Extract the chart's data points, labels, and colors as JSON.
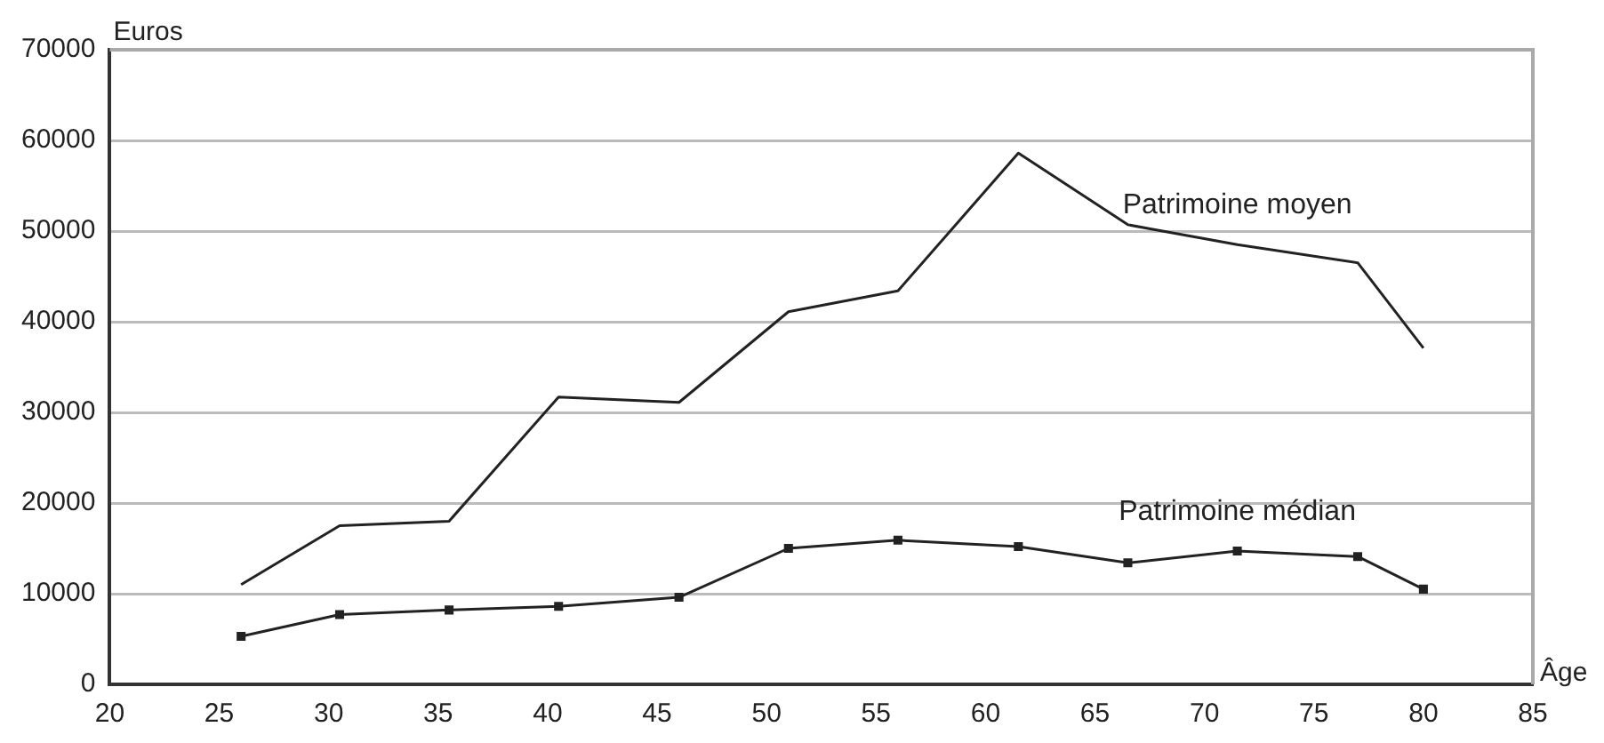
{
  "chart_data": {
    "type": "line",
    "xlabel": "Âge",
    "ylabel": "Euros",
    "xlim": [
      20,
      85
    ],
    "xticks": [
      20,
      25,
      30,
      35,
      40,
      45,
      50,
      55,
      60,
      65,
      70,
      75,
      80,
      85
    ],
    "ylim": [
      0,
      70000
    ],
    "yticks": [
      0,
      10000,
      20000,
      30000,
      40000,
      50000,
      60000,
      70000
    ],
    "grid": "y",
    "legend": false,
    "line_style": "solid",
    "series": [
      {
        "name": "Patrimoine moyen",
        "color": "#222222",
        "marker": "none",
        "x": [
          26,
          30.5,
          35.5,
          40.5,
          46,
          51,
          56,
          61.5,
          66.5,
          71.5,
          77,
          80
        ],
        "values": [
          11000,
          17500,
          18000,
          31700,
          31100,
          41100,
          43400,
          58600,
          50700,
          48500,
          46500,
          37100
        ]
      },
      {
        "name": "Patrimoine médian",
        "color": "#222222",
        "marker": "square",
        "x": [
          26,
          30.5,
          35.5,
          40.5,
          46,
          51,
          56,
          61.5,
          66.5,
          71.5,
          77,
          80
        ],
        "values": [
          5300,
          7700,
          8200,
          8600,
          9600,
          15000,
          15900,
          15200,
          13400,
          14700,
          14100,
          10500
        ]
      }
    ]
  }
}
